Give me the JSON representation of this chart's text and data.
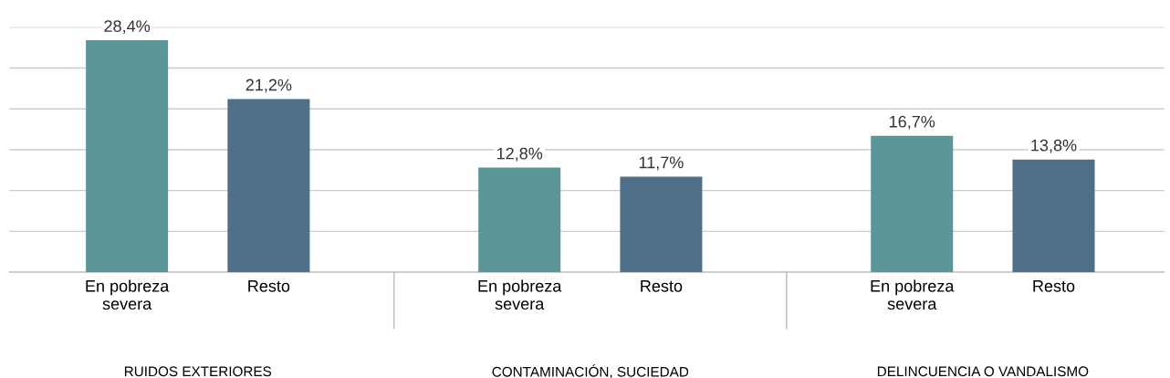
{
  "chart_data": {
    "type": "bar",
    "categories": [
      "En pobreza severa",
      "Resto",
      "En pobreza severa",
      "Resto",
      "En pobreza severa",
      "Resto"
    ],
    "values": [
      28.4,
      21.2,
      12.8,
      11.7,
      16.7,
      13.8
    ],
    "colors": [
      "#5b9798",
      "#4f7089",
      "#5b9798",
      "#4f7089",
      "#5b9798",
      "#4f7089"
    ],
    "value_labels": [
      "28,4%",
      "21,2%",
      "12,8%",
      "11,7%",
      "16,7%",
      "13,8%"
    ],
    "ylim": [
      0,
      30
    ],
    "yticks": [
      {
        "value": 0,
        "label": null
      },
      {
        "value": 5,
        "label": null
      },
      {
        "value": 10,
        "label": null
      },
      {
        "value": 15,
        "label": null
      },
      {
        "value": 20,
        "label": null
      },
      {
        "value": 25,
        "label": null
      },
      {
        "value": 30,
        "label": null
      }
    ],
    "grid": "y",
    "tick_labels": "x",
    "annotations": [
      "RUIDOS EXTERIORES",
      "CONTAMINACIÓN, SUCIEDAD",
      "DELINCUENCIA O VANDALISMO"
    ]
  }
}
